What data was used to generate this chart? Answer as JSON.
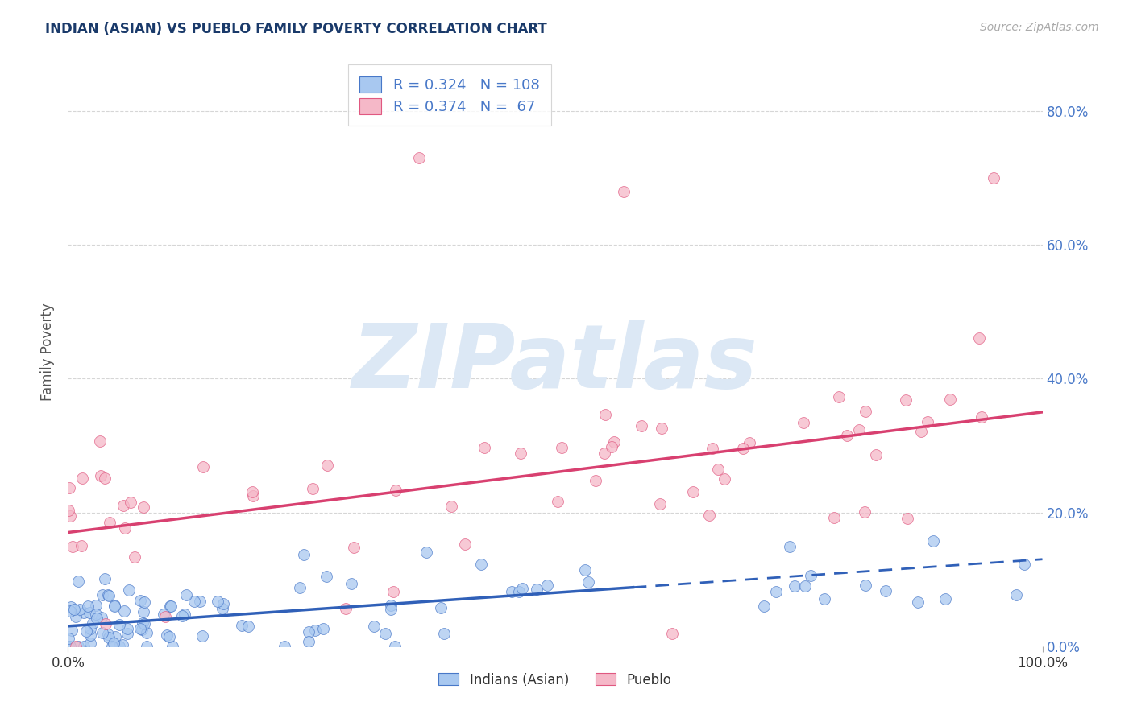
{
  "title": "INDIAN (ASIAN) VS PUEBLO FAMILY POVERTY CORRELATION CHART",
  "source": "Source: ZipAtlas.com",
  "ylabel": "Family Poverty",
  "blue_label": "Indians (Asian)",
  "pink_label": "Pueblo",
  "blue_R": 0.324,
  "blue_N": 108,
  "pink_R": 0.374,
  "pink_N": 67,
  "blue_color": "#a8c8f0",
  "pink_color": "#f5b8c8",
  "blue_edge_color": "#4878c8",
  "pink_edge_color": "#e05880",
  "blue_line_color": "#3060b8",
  "pink_line_color": "#d84070",
  "background_color": "#ffffff",
  "grid_color": "#cccccc",
  "title_color": "#1a3a6a",
  "axis_label_color": "#4878c8",
  "watermark_text": "ZIPatlas",
  "watermark_color": "#dce8f5",
  "blue_intercept": 3.0,
  "blue_slope": 0.1,
  "pink_intercept": 17.0,
  "pink_slope": 0.18,
  "blue_solid_end": 58,
  "xlim": [
    0,
    100
  ],
  "ylim": [
    0,
    88
  ],
  "ytick_positions": [
    0,
    20,
    40,
    60,
    80
  ],
  "ytick_labels": [
    "0.0%",
    "20.0%",
    "40.0%",
    "60.0%",
    "80.0%"
  ],
  "xtick_positions": [
    0,
    100
  ],
  "xtick_labels": [
    "0.0%",
    "100.0%"
  ]
}
